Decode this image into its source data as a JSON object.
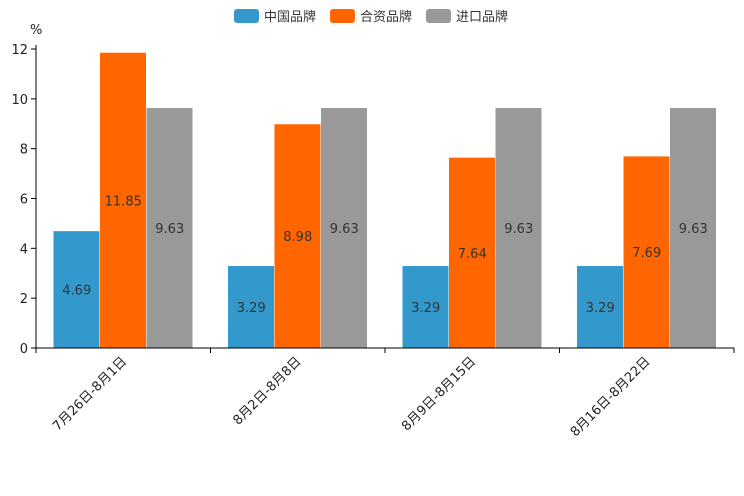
{
  "chart_data": {
    "type": "bar",
    "title": "",
    "xlabel": "",
    "ylabel": "%",
    "ylim": [
      0,
      12
    ],
    "yticks": [
      0,
      2,
      4,
      6,
      8,
      10,
      12
    ],
    "grid": false,
    "legend_position": "top-center",
    "categories": [
      "7月26日-8月1日",
      "8月2日-8月8日",
      "8月9日-8月15日",
      "8月16日-8月22日"
    ],
    "series": [
      {
        "name": "中国品牌",
        "color": "#3399cc",
        "values": [
          4.69,
          3.29,
          3.29,
          3.29
        ],
        "labels": [
          "4.69",
          "3.29",
          "3.29",
          "3.29"
        ]
      },
      {
        "name": "合资品牌",
        "color": "#ff6600",
        "values": [
          11.85,
          8.98,
          7.64,
          7.69
        ],
        "labels": [
          "11.85",
          "8.98",
          "7.64",
          "7.69"
        ]
      },
      {
        "name": "进口品牌",
        "color": "#999999",
        "values": [
          9.63,
          9.63,
          9.63,
          9.63
        ],
        "labels": [
          "9.63",
          "9.63",
          "9.63",
          "9.63"
        ]
      }
    ]
  }
}
